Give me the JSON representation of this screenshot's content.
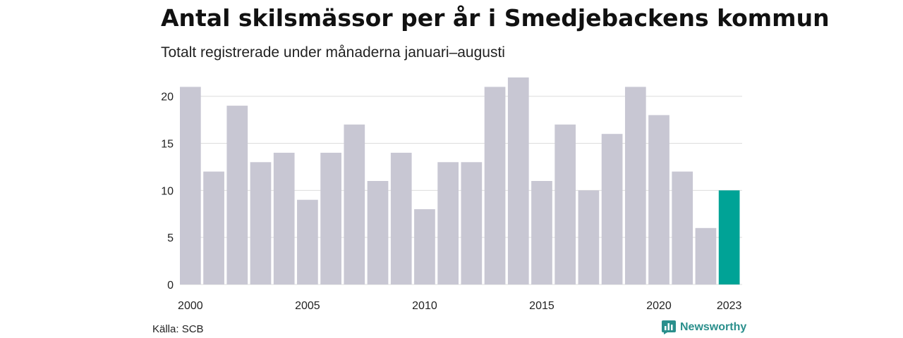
{
  "header": {
    "title": "Antal skilsmässor per år i Smedjebackens kommun",
    "subtitle": "Totalt registrerade under månaderna januari–augusti"
  },
  "footer": {
    "source": "Källa: SCB",
    "brand": "Newsworthy"
  },
  "colors": {
    "bar": "#c8c7d3",
    "highlight": "#00a396",
    "grid": "#dddddd",
    "brand": "#2a8f8c"
  },
  "chart_data": {
    "type": "bar",
    "categories": [
      "2000",
      "2001",
      "2002",
      "2003",
      "2004",
      "2005",
      "2006",
      "2007",
      "2008",
      "2009",
      "2010",
      "2011",
      "2012",
      "2013",
      "2014",
      "2015",
      "2016",
      "2017",
      "2018",
      "2019",
      "2020",
      "2021",
      "2022",
      "2023"
    ],
    "values": [
      21,
      12,
      19,
      13,
      14,
      9,
      14,
      17,
      11,
      14,
      8,
      13,
      13,
      21,
      22,
      11,
      17,
      10,
      16,
      21,
      18,
      12,
      6,
      10
    ],
    "highlight": "2023",
    "x_tick_labels": [
      "2000",
      "2005",
      "2010",
      "2015",
      "2020",
      "2023"
    ],
    "y_ticks": [
      0,
      5,
      10,
      15,
      20
    ],
    "ylim": [
      0,
      22
    ],
    "grid": true,
    "legend": "none",
    "xlabel": "",
    "ylabel": ""
  }
}
